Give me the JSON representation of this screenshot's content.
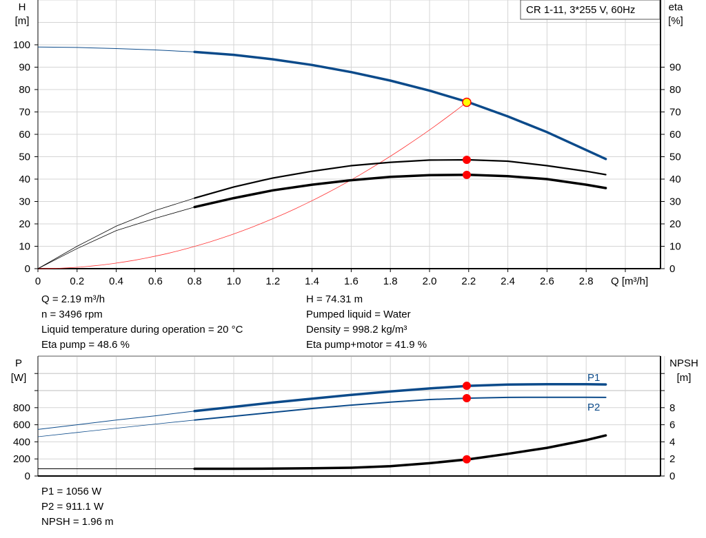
{
  "chart_data": [
    {
      "type": "line",
      "title": "CR 1-11, 3*255 V, 60Hz",
      "xlabel": "Q [m³/h]",
      "ylabel_left": "H\n[m]",
      "ylabel_left_lines": [
        "H",
        "[m]"
      ],
      "ylabel_right_lines": [
        "eta",
        "[%]"
      ],
      "xlim": [
        0,
        3.2
      ],
      "ylim": [
        0,
        120
      ],
      "x_ticks": [
        "0",
        "0.2",
        "0.4",
        "0.6",
        "0.8",
        "1.0",
        "1.2",
        "1.4",
        "1.6",
        "1.8",
        "2.0",
        "2.2",
        "2.4",
        "2.6",
        "2.8"
      ],
      "y_ticks_left": [
        "0",
        "10",
        "20",
        "30",
        "40",
        "50",
        "60",
        "70",
        "80",
        "90",
        "100"
      ],
      "y_ticks_right": [
        "0",
        "10",
        "20",
        "30",
        "40",
        "50",
        "60",
        "70",
        "80",
        "90"
      ],
      "grid": true,
      "x": [
        0,
        0.2,
        0.4,
        0.6,
        0.8,
        1.0,
        1.2,
        1.4,
        1.6,
        1.8,
        2.0,
        2.2,
        2.4,
        2.6,
        2.8,
        2.9
      ],
      "series": [
        {
          "key": "H",
          "color": "#0b4a8a",
          "values": [
            99,
            98.8,
            98.3,
            97.7,
            96.8,
            95.5,
            93.5,
            91,
            87.8,
            84,
            79.5,
            74.3,
            68,
            61,
            53,
            49
          ]
        },
        {
          "key": "eta_pump",
          "color": "#000000",
          "values": [
            0,
            10,
            19,
            26,
            31.5,
            36.5,
            40.5,
            43.5,
            46,
            47.5,
            48.5,
            48.6,
            48,
            46,
            43.5,
            42
          ]
        },
        {
          "key": "eta_total",
          "color": "#000000",
          "values": [
            0,
            9,
            17,
            22.5,
            27.5,
            31.5,
            35,
            37.5,
            39.5,
            41,
            41.8,
            41.9,
            41.3,
            40,
            37.5,
            36
          ]
        }
      ],
      "system_curve": {
        "color": "#ff3030",
        "q_end": 2.19,
        "h_end": 74.31
      },
      "duty_point": {
        "q": 2.19,
        "h": 74.31,
        "eta_pump": 48.6,
        "eta_total": 41.9
      },
      "thick_from_q": 0.8
    },
    {
      "type": "line",
      "ylabel_left_lines": [
        "P",
        "[W]"
      ],
      "ylabel_right_lines": [
        "NPSH",
        "[m]"
      ],
      "xlim": [
        0,
        3.2
      ],
      "ylim": [
        0,
        1200
      ],
      "y_ticks_left": [
        "0",
        "200",
        "400",
        "600",
        "800",
        "",
        ""
      ],
      "y_ticks_right": [
        "0",
        "2",
        "4",
        "6",
        "8",
        "",
        ""
      ],
      "grid": true,
      "x": [
        0,
        0.2,
        0.4,
        0.6,
        0.8,
        1.0,
        1.2,
        1.4,
        1.6,
        1.8,
        2.0,
        2.2,
        2.4,
        2.6,
        2.8,
        2.9
      ],
      "series": [
        {
          "name": "P1",
          "color": "#0b4a8a",
          "values": [
            545,
            600,
            655,
            705,
            760,
            810,
            860,
            905,
            950,
            990,
            1025,
            1056,
            1070,
            1075,
            1075,
            1072
          ]
        },
        {
          "name": "P2",
          "color": "#0b4a8a",
          "values": [
            460,
            510,
            560,
            608,
            655,
            700,
            745,
            790,
            830,
            865,
            895,
            911,
            920,
            922,
            922,
            920
          ]
        },
        {
          "key": "NPSH",
          "unit": "m",
          "color": "#000000",
          "values": [
            0.85,
            0.85,
            0.85,
            0.85,
            0.85,
            0.85,
            0.86,
            0.9,
            0.97,
            1.15,
            1.5,
            1.96,
            2.6,
            3.3,
            4.2,
            4.75
          ]
        }
      ]
    }
  ],
  "info_top_left": [
    "Q = 2.19 m³/h",
    "n = 3496 rpm",
    "Liquid temperature during operation = 20 °C",
    "Eta pump = 48.6 %"
  ],
  "info_top_right": [
    "H = 74.31 m",
    "Pumped liquid = Water",
    "Density = 998.2 kg/m³",
    "Eta pump+motor = 41.9 %"
  ],
  "info_bottom": [
    "P1 = 1056 W",
    "P2 = 911.1 W",
    "NPSH = 1.96 m"
  ]
}
